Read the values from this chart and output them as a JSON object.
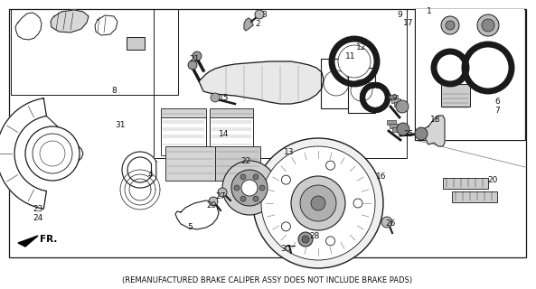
{
  "background_color": "#ffffff",
  "line_color": "#1a1a1a",
  "text_color": "#111111",
  "footnote": "(REMANUFACTURED BRAKE CALIPER ASSY DOES NOT INCLUDE BRAKE PADS)",
  "footnote_fontsize": 6.0,
  "label_fontsize": 6.5,
  "figsize": [
    5.93,
    3.2
  ],
  "dpi": 100,
  "use_image": true
}
